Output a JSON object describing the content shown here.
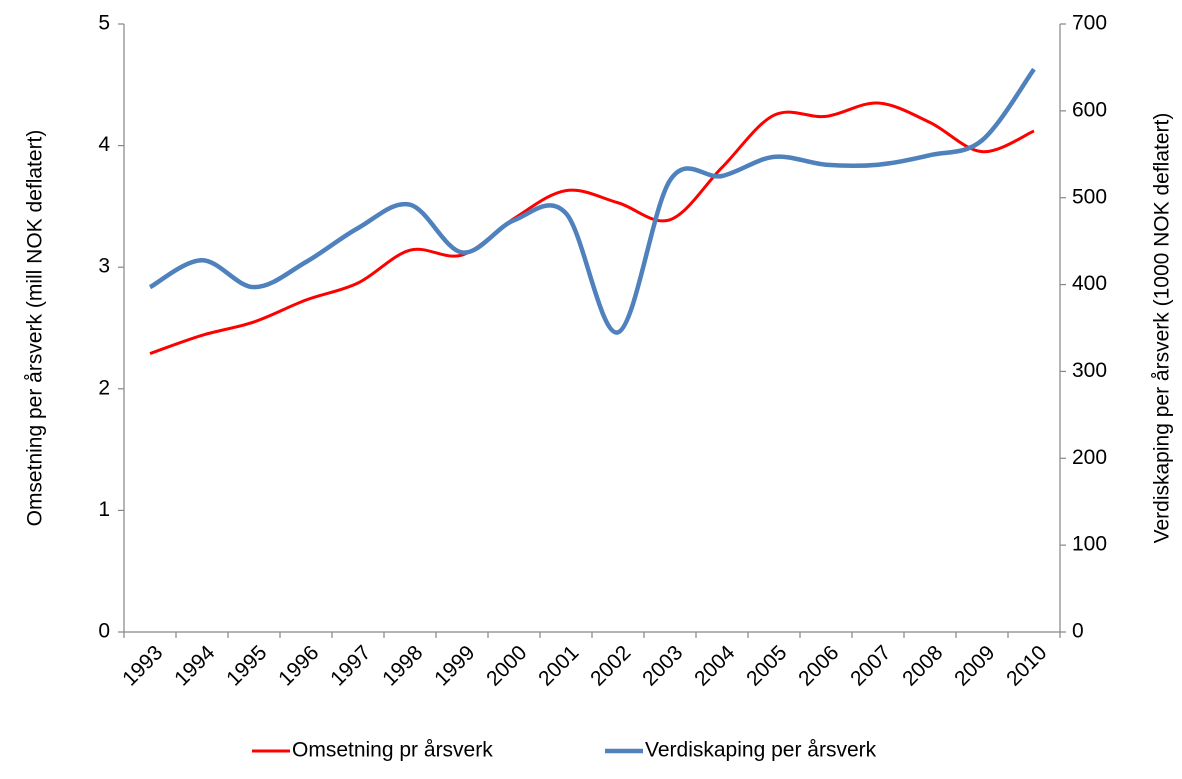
{
  "chart_data": {
    "type": "line",
    "ylabel": "Omsetning per årsverk (mill NOK deflatert)",
    "y2label": "Verdiskaping per årsverk (1000 NOK deflatert)",
    "categories": [
      "1993",
      "1994",
      "1995",
      "1996",
      "1997",
      "1998",
      "1999",
      "2000",
      "2001",
      "2002",
      "2003",
      "2004",
      "2005",
      "2006",
      "2007",
      "2008",
      "2009",
      "2010"
    ],
    "series": [
      {
        "name": "Omsetning pr årsverk",
        "color": "#ff0000",
        "axis": "y",
        "values": [
          2.29,
          2.44,
          2.55,
          2.73,
          2.87,
          3.14,
          3.1,
          3.4,
          3.63,
          3.53,
          3.39,
          3.82,
          4.25,
          4.24,
          4.35,
          4.19,
          3.95,
          4.12
        ]
      },
      {
        "name": "Verdiskaping per årsverk",
        "color": "#4f81bd",
        "axis": "y2",
        "values": [
          397,
          428,
          397,
          426,
          465,
          492,
          437,
          474,
          482,
          345,
          520,
          525,
          547,
          538,
          538,
          549,
          566,
          648
        ]
      }
    ],
    "ylim": [
      0,
      5
    ],
    "yticks": [
      0,
      1,
      2,
      3,
      4,
      5
    ],
    "y2lim": [
      0,
      700
    ],
    "y2ticks": [
      0,
      100,
      200,
      300,
      400,
      500,
      600,
      700
    ],
    "legend": "bottom"
  }
}
